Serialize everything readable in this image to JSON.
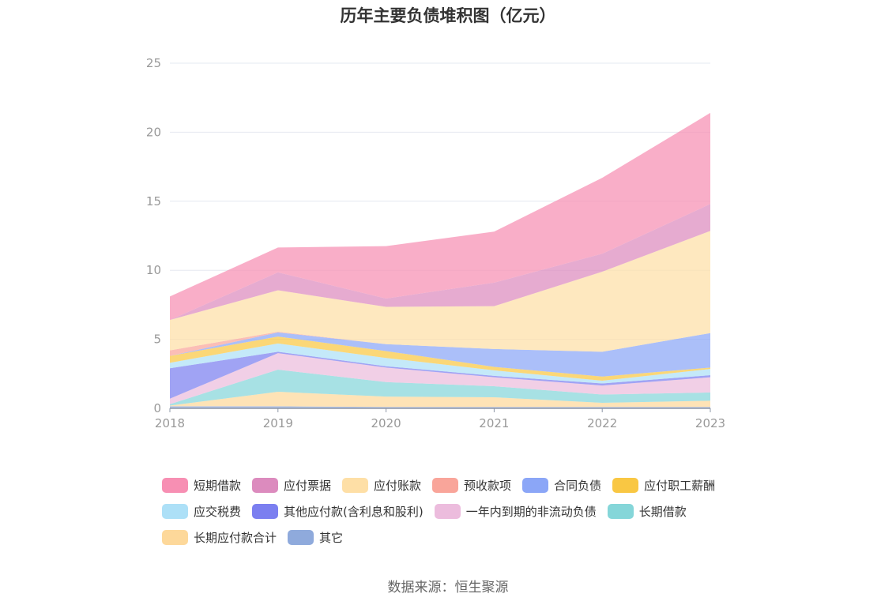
{
  "title": "历年主要负债堆积图（亿元）",
  "source": "数据来源：恒生聚源",
  "chart_data": {
    "type": "area",
    "stacked": true,
    "categories": [
      "2018",
      "2019",
      "2020",
      "2021",
      "2022",
      "2023"
    ],
    "ylim": [
      0,
      25
    ],
    "yticks": [
      0,
      5,
      10,
      15,
      20,
      25
    ],
    "grid": true,
    "legend_position": "bottom",
    "series": [
      {
        "name": "其它",
        "color": "#8faadc",
        "values": [
          0.15,
          0.15,
          0.1,
          0.1,
          0.1,
          0.1
        ]
      },
      {
        "name": "长期应付款合计",
        "color": "#fdd89a",
        "values": [
          0.05,
          1.05,
          0.75,
          0.7,
          0.3,
          0.45
        ]
      },
      {
        "name": "长期借款",
        "color": "#85d6d9",
        "values": [
          0.1,
          1.6,
          1.05,
          0.8,
          0.6,
          0.6
        ]
      },
      {
        "name": "一年内到期的非流动负债",
        "color": "#ecbcdd",
        "values": [
          0.4,
          1.2,
          1.05,
          0.65,
          0.65,
          1.1
        ]
      },
      {
        "name": "其他应付款(含利息和股利)",
        "color": "#7b7ff0",
        "values": [
          2.2,
          0.1,
          0.1,
          0.1,
          0.15,
          0.15
        ]
      },
      {
        "name": "应交税费",
        "color": "#ade0f7",
        "values": [
          0.4,
          0.6,
          0.6,
          0.4,
          0.2,
          0.45
        ]
      },
      {
        "name": "应付职工薪酬",
        "color": "#f9c743",
        "values": [
          0.5,
          0.5,
          0.5,
          0.25,
          0.3,
          0.1
        ]
      },
      {
        "name": "合同负债",
        "color": "#8ba6f7",
        "values": [
          0.0,
          0.3,
          0.5,
          1.3,
          1.8,
          2.5
        ]
      },
      {
        "name": "预收款项",
        "color": "#f9a59a",
        "values": [
          0.4,
          0.05,
          0.0,
          0.0,
          0.0,
          0.0
        ]
      },
      {
        "name": "应付账款",
        "color": "#fedfa6",
        "values": [
          2.2,
          3.0,
          2.7,
          3.1,
          5.8,
          7.4
        ]
      },
      {
        "name": "应付票据",
        "color": "#dc8bbe",
        "values": [
          0.0,
          1.3,
          0.6,
          1.7,
          1.3,
          1.95
        ]
      },
      {
        "name": "短期借款",
        "color": "#f78fb3",
        "values": [
          1.7,
          1.8,
          3.8,
          3.7,
          5.5,
          6.6
        ]
      }
    ]
  },
  "legend_rows": [
    [
      "短期借款",
      "应付票据",
      "应付账款",
      "预收款项",
      "合同负债",
      "应付职工薪酬"
    ],
    [
      "应交税费",
      "其他应付款(含利息和股利)",
      "一年内到期的非流动负债",
      "长期借款"
    ],
    [
      "长期应付款合计",
      "其它"
    ]
  ]
}
